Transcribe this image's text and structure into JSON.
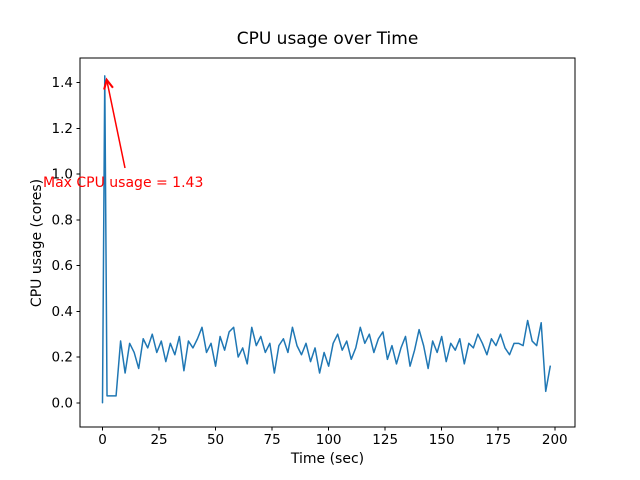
{
  "figure": {
    "title": "CPU usage over Time",
    "xlabel": "Time (sec)",
    "ylabel": "CPU usage (cores)",
    "annotation": {
      "text": "Max CPU usage = 1.43",
      "color": "#ff0000"
    }
  },
  "chart_data": {
    "type": "line",
    "title": "CPU usage over Time",
    "xlabel": "Time (sec)",
    "ylabel": "CPU usage (cores)",
    "grid": false,
    "legend_position": "none",
    "background_color": "#ffffff",
    "spine_color": "#000000",
    "line_color": "#1f77b4",
    "xlim": [
      -9.95,
      208.95
    ],
    "ylim": [
      -0.106,
      1.508
    ],
    "x_ticks": [
      0,
      25,
      50,
      75,
      100,
      125,
      150,
      175,
      200
    ],
    "y_tick_labels": [
      "0.0",
      "0.2",
      "0.4",
      "0.6",
      "0.8",
      "1.0",
      "1.2",
      "1.4"
    ],
    "annotation": {
      "text": "Max CPU usage = 1.43",
      "color": "#ff0000",
      "xy": [
        1.2,
        1.43
      ]
    },
    "series": [
      {
        "name": "CPU usage",
        "x": [
          0,
          1,
          2,
          4,
          6,
          8,
          10,
          12,
          14,
          16,
          18,
          20,
          22,
          24,
          26,
          28,
          30,
          32,
          34,
          36,
          38,
          40,
          42,
          44,
          46,
          48,
          50,
          52,
          54,
          56,
          58,
          60,
          62,
          64,
          66,
          68,
          70,
          72,
          74,
          76,
          78,
          80,
          82,
          84,
          86,
          88,
          90,
          92,
          94,
          96,
          98,
          100,
          102,
          104,
          106,
          108,
          110,
          112,
          114,
          116,
          118,
          120,
          122,
          124,
          126,
          128,
          130,
          132,
          134,
          136,
          138,
          140,
          142,
          144,
          146,
          148,
          150,
          152,
          154,
          156,
          158,
          160,
          162,
          164,
          166,
          168,
          170,
          172,
          174,
          176,
          178,
          180,
          182,
          184,
          186,
          188,
          190,
          192,
          194,
          196,
          198
        ],
        "y": [
          0.0,
          1.43,
          0.03,
          0.03,
          0.03,
          0.27,
          0.13,
          0.26,
          0.22,
          0.15,
          0.28,
          0.24,
          0.3,
          0.22,
          0.27,
          0.18,
          0.26,
          0.21,
          0.29,
          0.14,
          0.27,
          0.24,
          0.28,
          0.33,
          0.22,
          0.26,
          0.16,
          0.29,
          0.23,
          0.31,
          0.33,
          0.2,
          0.24,
          0.17,
          0.33,
          0.25,
          0.29,
          0.22,
          0.26,
          0.13,
          0.25,
          0.28,
          0.22,
          0.33,
          0.25,
          0.21,
          0.26,
          0.18,
          0.24,
          0.13,
          0.22,
          0.16,
          0.26,
          0.3,
          0.23,
          0.27,
          0.19,
          0.24,
          0.33,
          0.26,
          0.3,
          0.22,
          0.28,
          0.31,
          0.19,
          0.25,
          0.17,
          0.24,
          0.29,
          0.16,
          0.23,
          0.32,
          0.25,
          0.15,
          0.27,
          0.22,
          0.29,
          0.18,
          0.26,
          0.23,
          0.28,
          0.17,
          0.26,
          0.24,
          0.3,
          0.26,
          0.21,
          0.28,
          0.25,
          0.3,
          0.24,
          0.21,
          0.26,
          0.26,
          0.25,
          0.36,
          0.27,
          0.25,
          0.35,
          0.05,
          0.16
        ]
      }
    ]
  }
}
